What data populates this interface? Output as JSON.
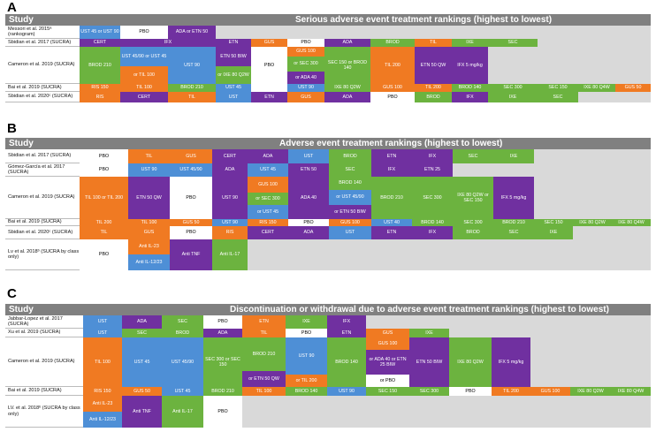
{
  "colors": {
    "UST": "#4e8fd6",
    "IFX": "#7030a0",
    "ETN": "#7030a0",
    "GUS": "#f07a22",
    "TIL": "#f07a22",
    "SEC": "#6cb33f",
    "IXE": "#6cb33f",
    "BROD": "#6cb33f",
    "PBO": "#ffffff",
    "ADA": "#7030a0",
    "CERT": "#7030a0",
    "RIS": "#f07a22",
    "ANTI_TNF": "#7030a0",
    "ANTI_IL17": "#6cb33f",
    "ANTI_IL23": "#f07a22",
    "ANTI_IL1223": "#4e8fd6",
    "header": "#808080",
    "empty": "#d9d9d9"
  },
  "panels": [
    {
      "label": "A",
      "study_header": "Study",
      "title": "Serious adverse event treatment rankings (highest to lowest)",
      "studies": [
        "Messori et al. 2015ᵃ (rankogram)",
        "Sbidian et al. 2017 (SUCRA)",
        "Cameron et al. 2019 (SUCRA)",
        "Bai et al. 2019 (SUCRA)",
        "Sbidian et al. 2020ᶜ (SUCRA)"
      ],
      "cells": [
        [
          "UST 45 or UST 90",
          "PBO",
          "ADA or ETN 50",
          "ETN",
          "GUS",
          "PBO",
          "ADA",
          "BROD",
          "TIL",
          "IXE",
          "SEC",
          "BROD 210",
          "UST 45/90 or UST 45",
          "or TIL 100",
          "UST 90",
          "ETN 50 BIW",
          "or IXE 80 Q2W",
          "PBO",
          "GUS 100",
          "or SEC 300",
          "or ADA 40",
          "SEC 150 or BROD 140",
          "TIL 200",
          "ETN 50 QW",
          "IFX 5 mg/kg",
          "RIS 150",
          "TIL 100",
          "BROD 210",
          "UST 45",
          "UST 90",
          "IXE 80 Q2W",
          "GUS 100",
          "TIL 200",
          "BROD 140",
          "SEC 300",
          "SEC 150",
          "IXE 80 Q4W",
          "GUS 50",
          "RIS",
          "CERT",
          "TIL",
          "UST",
          "ETN",
          "GUS",
          "ADA",
          "PBO",
          "BROD",
          "IFX",
          "IXE",
          "SEC",
          "CERT",
          "IFX"
        ]
      ]
    },
    {
      "label": "B",
      "study_header": "Study",
      "title": "Adverse event treatment rankings (highest to lowest)",
      "studies": [
        "Sbidian et al. 2017 (SUCRA)",
        "Gómez-García et al. 2017 (SUCRA)",
        "Cameron et al. 2019 (SUCRA)",
        "Bai et al. 2019 (SUCRA)",
        "Sbidian et al. 2020ᶜ (SUCRA)",
        "Lv et al. 2018ᵇ (SUCRA by class only)"
      ],
      "cells": [
        [
          "PBO",
          "TIL",
          "GUS",
          "CERT",
          "ADA",
          "UST",
          "BROD",
          "ETN",
          "IFX",
          "SEC",
          "IXE",
          "PBO",
          "UST 90",
          "UST 45/90",
          "ADA",
          "UST 45",
          "ETN 50",
          "SEC",
          "IFX",
          "ETN 25",
          "TIL 100 or TIL 200",
          "ETN 50 QW",
          "PBO",
          "UST 90",
          "GUS 100",
          "or SEC 300",
          "or UST 45",
          "ADA 40",
          "BROD 140",
          "or UST 45/90",
          "or ETN 50 BIW",
          "BROD 210",
          "SEC 300",
          "IXE 80 Q2W or SEC 150",
          "IFX 5 mg/kg",
          "TIL 200",
          "TIL 100",
          "GUS 50",
          "UST 90",
          "RIS 150",
          "PBO",
          "GUS 100",
          "UST 40",
          "BROD 140",
          "SEC 300",
          "BROD 210",
          "SEC 150",
          "IXE 80 Q2W",
          "IXE 80 Q4W",
          "TIL",
          "GUS",
          "PBO",
          "RIS",
          "CERT",
          "ADA",
          "UST",
          "ETN",
          "IFX",
          "BROD",
          "SEC",
          "IXE",
          "PBO",
          "Anti IL-23",
          "Anti IL-12/23",
          "Anti TNF",
          "Anti IL-17"
        ]
      ]
    },
    {
      "label": "C",
      "study_header": "Study",
      "title": "Discontinuation or withdrawal due to adverse event treatment rankings (highest to lowest)",
      "studies": [
        "Jabbar-Lopez et al. 2017 (SUCRA)",
        "Xu et al. 2019 (SUCRA)",
        "Cameron et al. 2019 (SUCRA)",
        "Bai et al. 2019 (SUCRA)",
        "LV. et al. 2018ᵇ (SUCRA by class only)"
      ],
      "cells": [
        [
          "UST",
          "ADA",
          "SEC",
          "PBO",
          "ETN",
          "IXE",
          "IFX",
          "UST",
          "SEC",
          "BROD",
          "ADA",
          "TIL",
          "PBO",
          "ETN",
          "GUS",
          "IXE",
          "TIL 100",
          "UST 45",
          "UST 45/90",
          "SEC 300 or SEC 150",
          "BROD 210",
          "or ETN 50 QW",
          "UST 90",
          "or TIL 200",
          "BROD 140",
          "GUS 100",
          "or ADA 40 or ETN 25 BIW",
          "or PBO",
          "ETN 50 BIW",
          "IXE 80 Q2W",
          "IFX 5 mg/kg",
          "RIS 150",
          "GUS 50",
          "UST 45",
          "BROD 210",
          "TIL 100",
          "BROD 140",
          "UST 90",
          "SEC 150",
          "SEC 300",
          "PBO",
          "TIL 200",
          "GUS 100",
          "IXE 80 Q2W",
          "IXE 80 Q4W",
          "Anti IL-23",
          "Anti IL-12/23",
          "Anti TNF",
          "Anti IL-17",
          "PBO"
        ]
      ]
    }
  ]
}
